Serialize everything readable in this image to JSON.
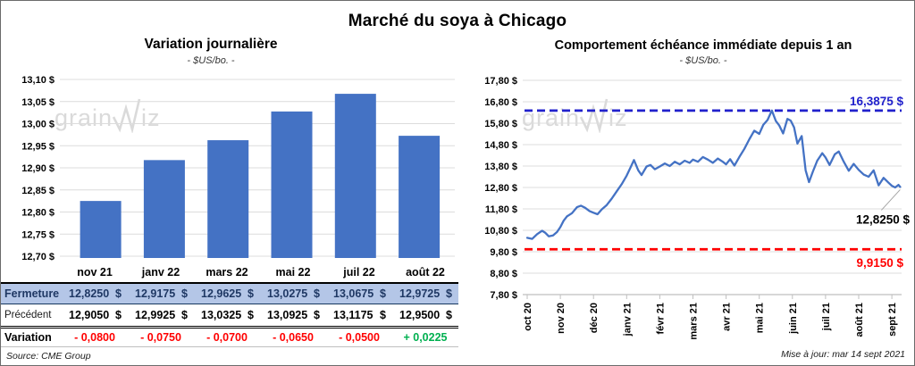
{
  "title": "Marché du soya à Chicago",
  "watermark": {
    "part1": "grain",
    "part2": "iz"
  },
  "colors": {
    "accent_blue": "#4472c4",
    "ceiling_blue": "#2121cc",
    "floor_red": "#ff0000",
    "negative": "#ff0000",
    "positive": "#00b050",
    "table_row_bg": "#b4c6e7",
    "table_row_text": "#1f3864",
    "gridline": "#dcdcdc",
    "axis_gray": "#bfbfbf",
    "leader_gray": "#a6a6a6",
    "watermark_gray": "#dadada"
  },
  "chart_data": [
    {
      "type": "bar",
      "title": "Variation  journalière",
      "subtitle": "- $US/bo. -",
      "categories": [
        "nov 21",
        "janv 22",
        "mars 22",
        "mai 22",
        "juil 22",
        "août 22"
      ],
      "values": [
        12.825,
        12.9175,
        12.9625,
        13.0275,
        13.0675,
        12.9725
      ],
      "ylim": [
        12.7,
        13.1
      ],
      "ytick_step": 0.05,
      "yticks": [
        13.1,
        13.05,
        13.0,
        12.95,
        12.9,
        12.85,
        12.8,
        12.75,
        12.7
      ],
      "ytick_labels": [
        "13,10 $",
        "13,05 $",
        "13,00 $",
        "12,95 $",
        "12,90 $",
        "12,85 $",
        "12,80 $",
        "12,75 $",
        "12,70 $"
      ],
      "bar_color": "#4472c4",
      "grid": true,
      "legend": "none"
    },
    {
      "type": "line",
      "title": "Comportement  échéance immédiate depuis 1 an",
      "subtitle": "- $US/bo. -",
      "x_tick_labels": [
        "oct 20",
        "nov 20",
        "déc 20",
        "janv 21",
        "févr 21",
        "mars 21",
        "avr 21",
        "mai 21",
        "juin 21",
        "juil 21",
        "août 21",
        "sept 21"
      ],
      "ylim": [
        7.8,
        17.8
      ],
      "ytick_step": 1.0,
      "yticks": [
        17.8,
        16.8,
        15.8,
        14.8,
        13.8,
        12.8,
        11.8,
        10.8,
        9.8,
        8.8,
        7.8
      ],
      "ytick_labels": [
        "17,80 $",
        "16,80 $",
        "15,80 $",
        "14,80 $",
        "13,80 $",
        "12,80 $",
        "11,80 $",
        "10,80 $",
        "9,80 $",
        "8,80 $",
        "7,80 $"
      ],
      "line_color": "#4472c4",
      "grid": true,
      "legend": "none",
      "points": [
        [
          0.0,
          10.45
        ],
        [
          0.15,
          10.4
        ],
        [
          0.3,
          10.62
        ],
        [
          0.45,
          10.78
        ],
        [
          0.55,
          10.68
        ],
        [
          0.65,
          10.52
        ],
        [
          0.78,
          10.56
        ],
        [
          0.9,
          10.72
        ],
        [
          1.0,
          10.95
        ],
        [
          1.1,
          11.25
        ],
        [
          1.2,
          11.45
        ],
        [
          1.35,
          11.6
        ],
        [
          1.5,
          11.88
        ],
        [
          1.62,
          11.95
        ],
        [
          1.75,
          11.85
        ],
        [
          1.88,
          11.7
        ],
        [
          2.0,
          11.62
        ],
        [
          2.12,
          11.55
        ],
        [
          2.25,
          11.78
        ],
        [
          2.4,
          11.98
        ],
        [
          2.55,
          12.28
        ],
        [
          2.7,
          12.62
        ],
        [
          2.85,
          12.95
        ],
        [
          3.0,
          13.35
        ],
        [
          3.12,
          13.75
        ],
        [
          3.22,
          14.08
        ],
        [
          3.35,
          13.6
        ],
        [
          3.45,
          13.38
        ],
        [
          3.6,
          13.78
        ],
        [
          3.72,
          13.85
        ],
        [
          3.85,
          13.65
        ],
        [
          4.0,
          13.78
        ],
        [
          4.15,
          13.92
        ],
        [
          4.3,
          13.8
        ],
        [
          4.45,
          14.0
        ],
        [
          4.6,
          13.88
        ],
        [
          4.75,
          14.05
        ],
        [
          4.9,
          13.95
        ],
        [
          5.0,
          14.1
        ],
        [
          5.15,
          14.0
        ],
        [
          5.3,
          14.22
        ],
        [
          5.45,
          14.1
        ],
        [
          5.6,
          13.95
        ],
        [
          5.75,
          14.15
        ],
        [
          5.9,
          14.0
        ],
        [
          6.0,
          13.88
        ],
        [
          6.12,
          14.12
        ],
        [
          6.25,
          13.82
        ],
        [
          6.4,
          14.22
        ],
        [
          6.55,
          14.6
        ],
        [
          6.7,
          15.05
        ],
        [
          6.85,
          15.45
        ],
        [
          7.0,
          15.3
        ],
        [
          7.12,
          15.72
        ],
        [
          7.25,
          15.95
        ],
        [
          7.38,
          16.39
        ],
        [
          7.5,
          15.9
        ],
        [
          7.6,
          15.7
        ],
        [
          7.72,
          15.32
        ],
        [
          7.85,
          16.0
        ],
        [
          7.95,
          15.92
        ],
        [
          8.05,
          15.6
        ],
        [
          8.15,
          14.85
        ],
        [
          8.28,
          15.2
        ],
        [
          8.4,
          13.6
        ],
        [
          8.5,
          13.05
        ],
        [
          8.62,
          13.55
        ],
        [
          8.75,
          14.05
        ],
        [
          8.9,
          14.4
        ],
        [
          9.0,
          14.2
        ],
        [
          9.12,
          13.85
        ],
        [
          9.28,
          14.35
        ],
        [
          9.4,
          14.48
        ],
        [
          9.55,
          14.0
        ],
        [
          9.7,
          13.58
        ],
        [
          9.85,
          13.9
        ],
        [
          10.0,
          13.62
        ],
        [
          10.15,
          13.4
        ],
        [
          10.3,
          13.3
        ],
        [
          10.45,
          13.6
        ],
        [
          10.6,
          12.9
        ],
        [
          10.75,
          13.25
        ],
        [
          10.9,
          13.02
        ],
        [
          11.0,
          12.88
        ],
        [
          11.1,
          12.8
        ],
        [
          11.2,
          12.92
        ],
        [
          11.25,
          12.825
        ]
      ],
      "reference_lines": [
        {
          "name": "ceiling",
          "value": 16.3875,
          "label": "16,3875 $",
          "color": "#2121cc",
          "style": "dashed"
        },
        {
          "name": "floor",
          "value": 9.915,
          "label": "9,9150 $",
          "color": "#ff0000",
          "style": "dashed"
        }
      ],
      "last_point": {
        "value": 12.825,
        "label": "12,8250 $"
      }
    }
  ],
  "table": {
    "columns": [
      "nov 21",
      "janv 22",
      "mars 22",
      "mai 22",
      "juil 22",
      "août 22"
    ],
    "rows": [
      {
        "label": "Fermeture",
        "values": [
          "12,8250",
          "12,9175",
          "12,9625",
          "13,0275",
          "13,0675",
          "12,9725"
        ],
        "currency": "$",
        "style": "fermeture"
      },
      {
        "label": "Précédent",
        "values": [
          "12,9050",
          "12,9925",
          "13,0325",
          "13,0925",
          "13,1175",
          "12,9500"
        ],
        "currency": "$",
        "style": "precedent"
      },
      {
        "label": "Variation",
        "values": [
          "- 0,0800",
          "- 0,0750",
          "- 0,0700",
          "- 0,0650",
          "- 0,0500",
          "+ 0,0225"
        ],
        "signs": [
          "neg",
          "neg",
          "neg",
          "neg",
          "neg",
          "pos"
        ],
        "style": "variation"
      }
    ]
  },
  "footer": {
    "source": "Source: CME Group",
    "updated": "Mise à jour: mar 14 sept 2021"
  }
}
